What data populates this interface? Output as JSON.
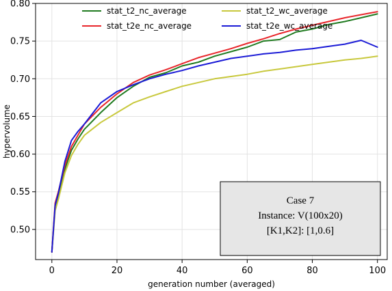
{
  "chart_data": {
    "type": "line",
    "title": "",
    "xlabel": "generation number (averaged)",
    "ylabel": "hypervolume",
    "xlim": [
      -5,
      103
    ],
    "ylim": [
      0.46,
      0.8
    ],
    "xticks": [
      0,
      20,
      40,
      60,
      80,
      100
    ],
    "yticks": [
      0.5,
      0.55,
      0.6,
      0.65,
      0.7,
      0.75,
      0.8
    ],
    "xtick_labels": [
      "0",
      "20",
      "40",
      "60",
      "80",
      "100"
    ],
    "ytick_labels": [
      "0.50",
      "0.55",
      "0.60",
      "0.65",
      "0.70",
      "0.75",
      "0.80"
    ],
    "grid": true,
    "legend_position": "top",
    "x": [
      0,
      1,
      2,
      4,
      6,
      8,
      10,
      15,
      20,
      25,
      30,
      35,
      40,
      45,
      50,
      55,
      60,
      65,
      70,
      75,
      80,
      85,
      90,
      95,
      100
    ],
    "series": [
      {
        "name": "stat_t2_nc_average",
        "color": "#1f7a1f",
        "values": [
          0.47,
          0.53,
          0.545,
          0.58,
          0.605,
          0.62,
          0.633,
          0.655,
          0.675,
          0.69,
          0.702,
          0.708,
          0.717,
          0.722,
          0.73,
          0.736,
          0.742,
          0.75,
          0.752,
          0.762,
          0.766,
          0.772,
          0.776,
          0.781,
          0.786
        ]
      },
      {
        "name": "stat_t2_wc_average",
        "color": "#c8c83c",
        "values": [
          0.47,
          0.525,
          0.54,
          0.575,
          0.598,
          0.613,
          0.625,
          0.642,
          0.655,
          0.668,
          0.676,
          0.683,
          0.69,
          0.695,
          0.7,
          0.703,
          0.706,
          0.71,
          0.713,
          0.716,
          0.719,
          0.722,
          0.725,
          0.727,
          0.73
        ]
      },
      {
        "name": "stat_t2e_nc_average",
        "color": "#e8252a",
        "values": [
          0.47,
          0.535,
          0.55,
          0.585,
          0.61,
          0.625,
          0.64,
          0.662,
          0.68,
          0.695,
          0.705,
          0.712,
          0.72,
          0.728,
          0.734,
          0.74,
          0.747,
          0.753,
          0.76,
          0.766,
          0.771,
          0.776,
          0.781,
          0.785,
          0.789
        ]
      },
      {
        "name": "stat_t2e_wc_average",
        "color": "#1a1ad6",
        "values": [
          0.47,
          0.532,
          0.548,
          0.59,
          0.618,
          0.63,
          0.64,
          0.668,
          0.683,
          0.692,
          0.7,
          0.706,
          0.711,
          0.717,
          0.722,
          0.727,
          0.73,
          0.733,
          0.735,
          0.738,
          0.74,
          0.743,
          0.746,
          0.751,
          0.742
        ]
      }
    ],
    "annotation": {
      "lines": [
        "Case 7",
        "Instance:  V(100x20)",
        "[K1,K2]:  [1,0.6]"
      ],
      "background": "#e6e6e6"
    }
  }
}
